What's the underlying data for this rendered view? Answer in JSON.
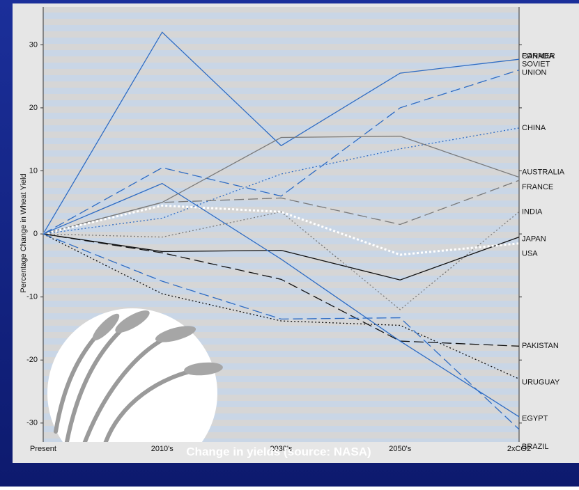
{
  "chart_data": {
    "type": "line",
    "caption": "Change in  yields (source: NASA)",
    "y_label": "Percentage Change in Wheat Yield",
    "categories": [
      "Present",
      "2010's",
      "2030's",
      "2050's",
      "2xCO2"
    ],
    "ylim": [
      -33,
      36
    ],
    "yticks": [
      30,
      20,
      10,
      0,
      -10,
      -20,
      -30
    ],
    "series": [
      {
        "name": "CANADA",
        "color": "#2e6cc4",
        "dash": "solid",
        "values": [
          0,
          32,
          14,
          25.5,
          27.7
        ]
      },
      {
        "name": "FORMER SOVIET UNION",
        "color": "#2e6cc4",
        "dash": "dashed",
        "values": [
          0,
          10.5,
          6,
          20,
          26
        ]
      },
      {
        "name": "CHINA",
        "color": "#2e6cc4",
        "dash": "dotted",
        "values": [
          0,
          2.5,
          9.5,
          13.5,
          16.8
        ]
      },
      {
        "name": "AUSTRALIA",
        "color": "#7a7a7a",
        "dash": "solid",
        "values": [
          0,
          5,
          15.3,
          15.5,
          9
        ]
      },
      {
        "name": "FRANCE",
        "color": "#7a7a7a",
        "dash": "dashed",
        "values": [
          0,
          5,
          5.7,
          1.5,
          8.5
        ]
      },
      {
        "name": "INDIA",
        "color": "#7a7a7a",
        "dash": "dotted",
        "values": [
          0,
          -0.5,
          3.5,
          -12,
          3.5
        ]
      },
      {
        "name": "JAPAN",
        "color": "#111111",
        "dash": "solid",
        "values": [
          0,
          -2.8,
          -2.6,
          -7.3,
          -0.5
        ]
      },
      {
        "name": "USA",
        "color": "#ffffff",
        "dash": "dotted",
        "values": [
          0,
          4.5,
          3.5,
          -3.3,
          -1.5
        ]
      },
      {
        "name": "PAKISTAN",
        "color": "#111111",
        "dash": "dashed",
        "values": [
          0,
          -3,
          -7.2,
          -17,
          -17.8
        ]
      },
      {
        "name": "URUGUAY",
        "color": "#111111",
        "dash": "dotted",
        "values": [
          0,
          -9.5,
          -13.8,
          -14.5,
          -23
        ]
      },
      {
        "name": "EGYPT",
        "color": "#2e6cc4",
        "dash": "solid",
        "values": [
          0,
          8,
          -4,
          -17,
          -29
        ]
      },
      {
        "name": "BRAZIL",
        "color": "#2e6cc4",
        "dash": "dashed",
        "values": [
          0,
          -7.5,
          -13.5,
          -13.3,
          -31
        ]
      }
    ]
  }
}
